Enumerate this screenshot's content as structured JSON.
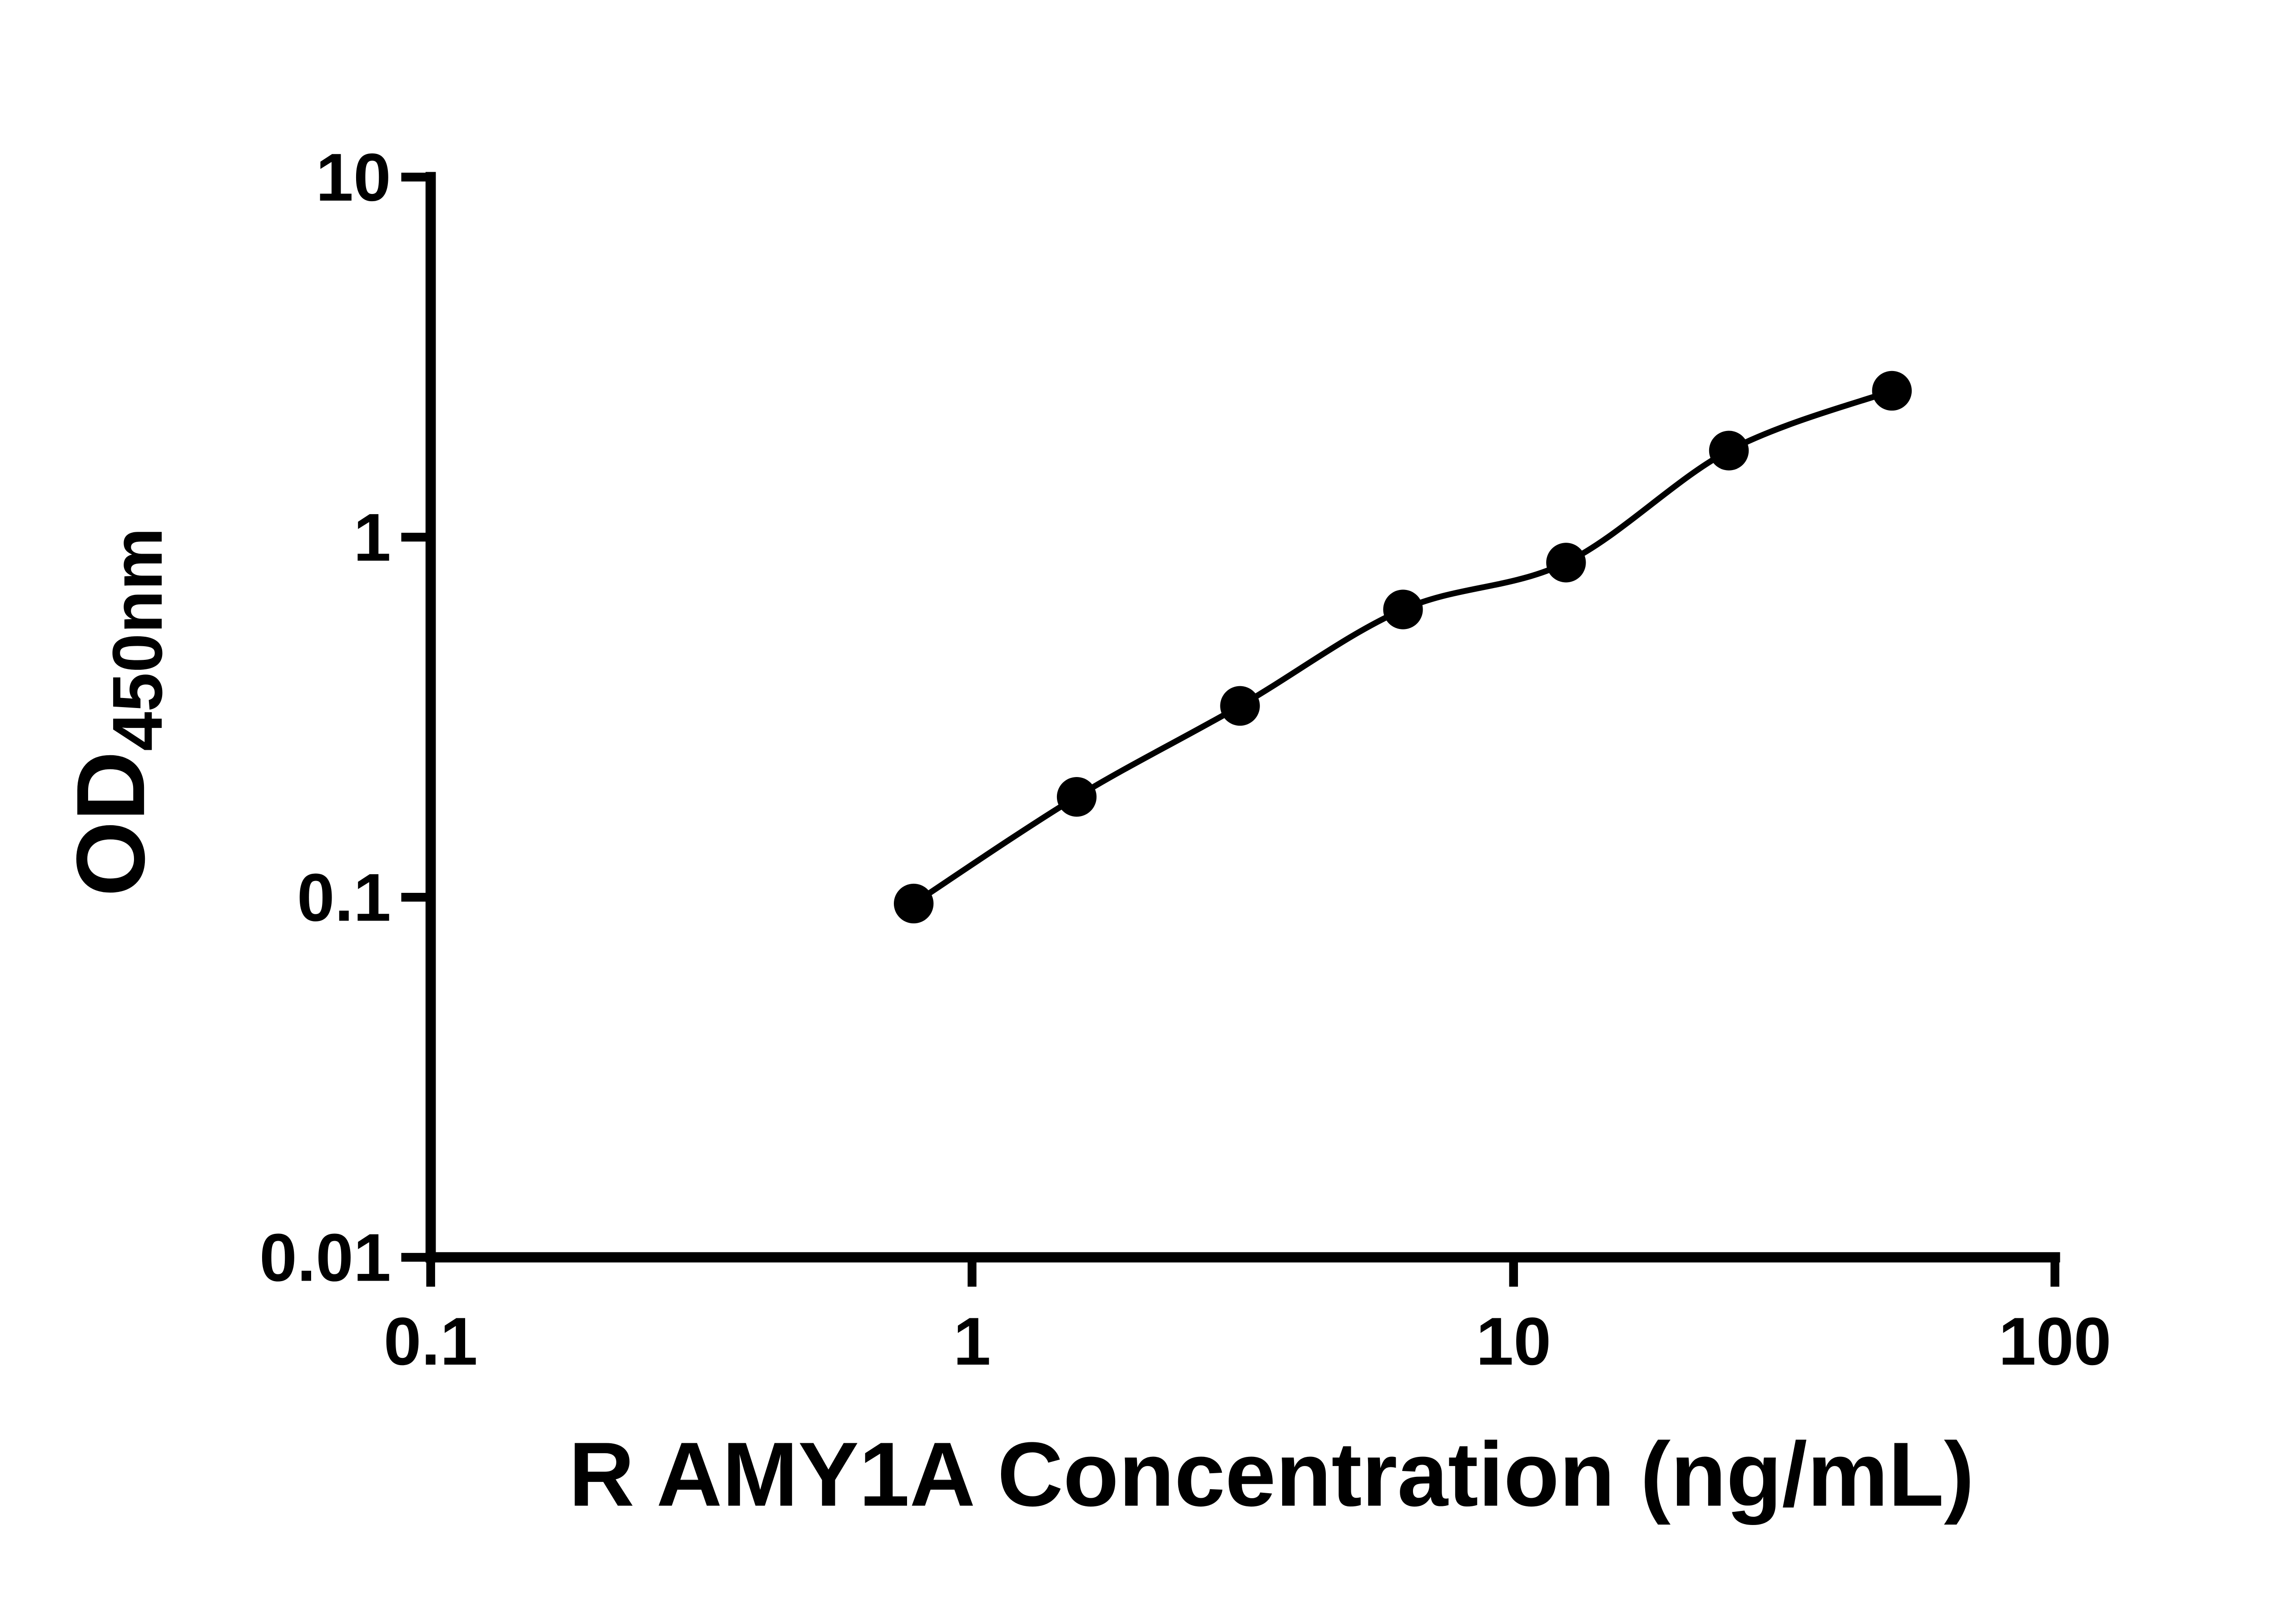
{
  "chart_data": {
    "type": "scatter",
    "title": "",
    "xlabel": "R AMY1A Concentration (ng/mL)",
    "ylabel_main": "OD",
    "ylabel_sub": "450nm",
    "xscale": "log",
    "yscale": "log",
    "xlim": [
      0.1,
      100
    ],
    "ylim": [
      0.01,
      10
    ],
    "grid": false,
    "legend": null,
    "x": [
      0.78,
      1.56,
      3.125,
      6.25,
      12.5,
      25,
      50
    ],
    "y": [
      0.096,
      0.19,
      0.34,
      0.63,
      0.85,
      1.74,
      2.55
    ],
    "xticks": {
      "values": [
        0.1,
        1,
        10,
        100
      ],
      "labels": [
        "0.1",
        "1",
        "10",
        "100"
      ]
    },
    "yticks": {
      "values": [
        0.01,
        0.1,
        1,
        10
      ],
      "labels": [
        "0.01",
        "0.1",
        "1",
        "10"
      ]
    },
    "fit_line": "smooth standard-curve fit through all points",
    "marker_color": "#000000",
    "line_color": "#000000",
    "axis_color": "#000000",
    "background_color": "#ffffff"
  }
}
